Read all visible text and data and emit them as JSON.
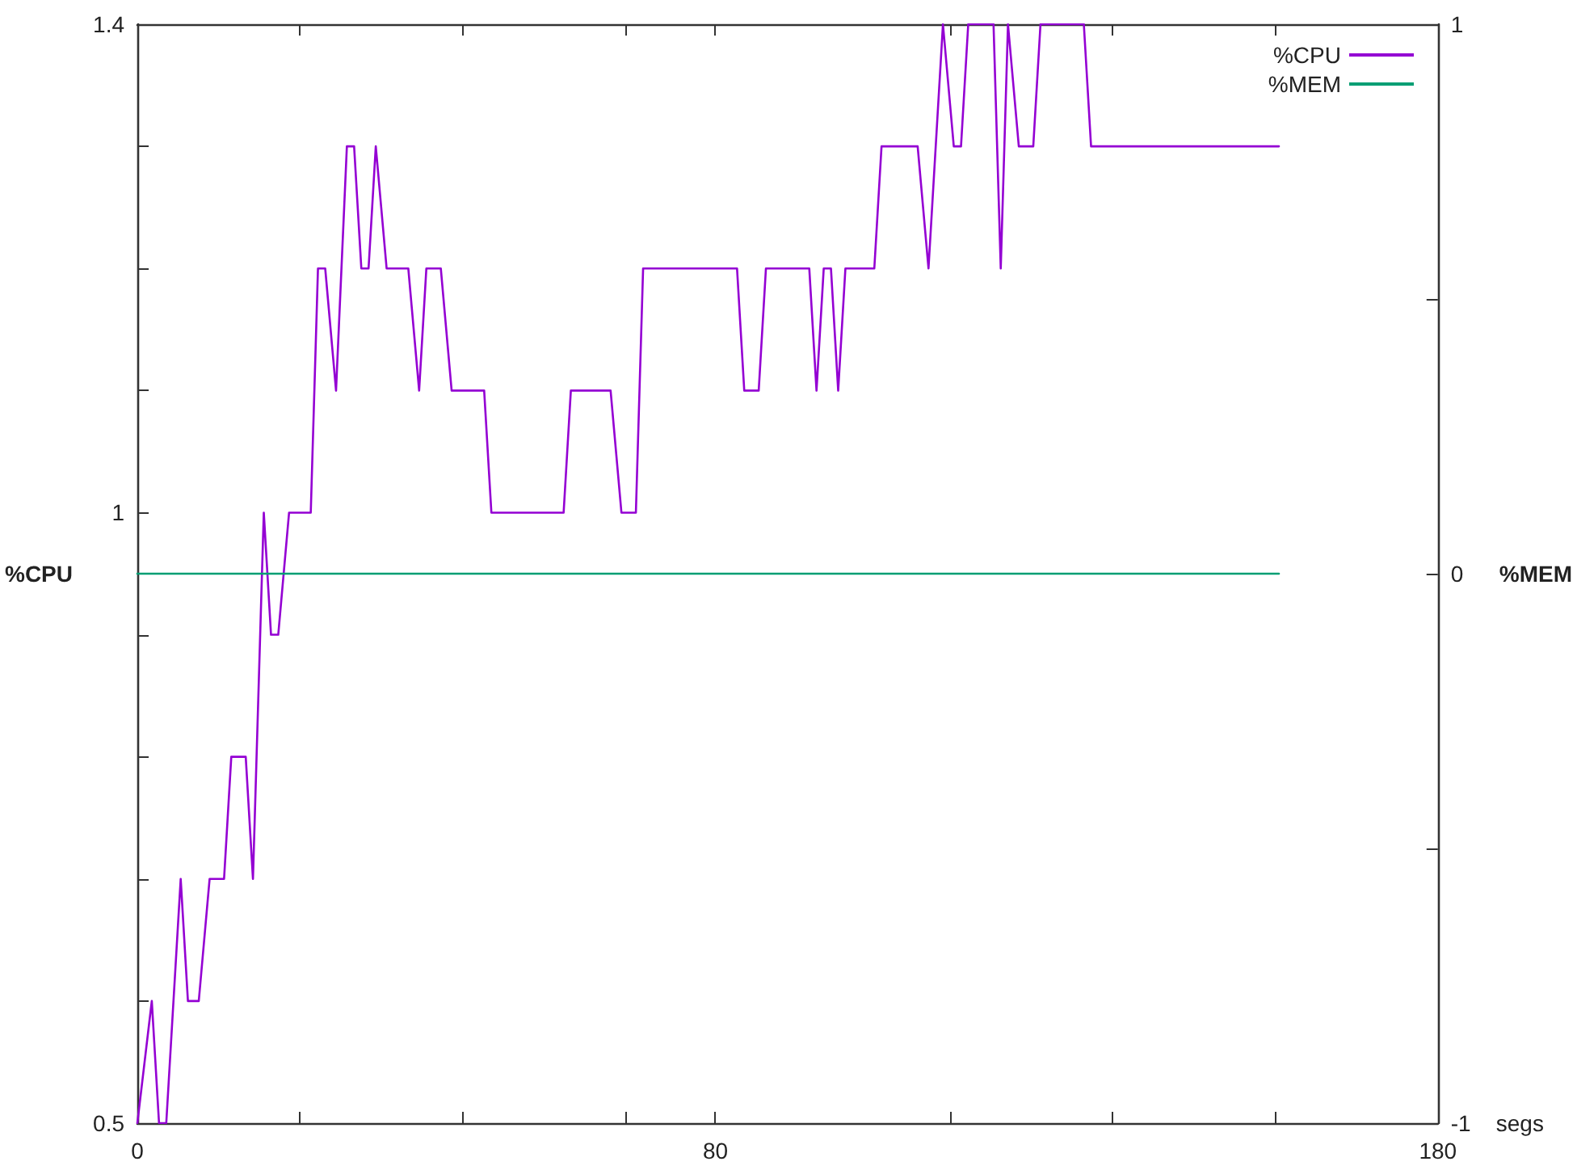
{
  "chart_data": {
    "type": "line",
    "xlabel": "segs",
    "ylabel": "%CPU",
    "y2label": "%MEM",
    "xlim": [
      0,
      180
    ],
    "xticks": [
      {
        "value": 0,
        "label": "0"
      },
      {
        "value": 22.5,
        "label": null
      },
      {
        "value": 45,
        "label": null
      },
      {
        "value": 67.5,
        "label": null
      },
      {
        "value": 80,
        "label": "80"
      },
      {
        "value": 112.5,
        "label": null
      },
      {
        "value": 135,
        "label": null
      },
      {
        "value": 157.5,
        "label": null
      },
      {
        "value": 180,
        "label": "180"
      }
    ],
    "ylim": [
      0.5,
      1.4
    ],
    "yticks": [
      {
        "value": 0.5,
        "label": "0.5"
      },
      {
        "value": 0.6,
        "label": null
      },
      {
        "value": 0.7,
        "label": null
      },
      {
        "value": 0.8,
        "label": null
      },
      {
        "value": 0.9,
        "label": null
      },
      {
        "value": 1,
        "label": "1"
      },
      {
        "value": 1.1,
        "label": null
      },
      {
        "value": 1.2,
        "label": null
      },
      {
        "value": 1.3,
        "label": null
      },
      {
        "value": 1.4,
        "label": "1.4"
      }
    ],
    "y2lim": [
      -1,
      1
    ],
    "y2ticks": [
      -1,
      {
        "value": -0.5,
        "label": null
      },
      0,
      {
        "value": 0.5,
        "label": null
      },
      1
    ],
    "grid": false,
    "legend": "top right",
    "marker": "none",
    "line_style": "solid",
    "series": [
      {
        "name": "%CPU",
        "color": "#9400d3",
        "x": [
          0,
          2,
          3,
          4,
          6,
          7,
          8.5,
          10,
          12,
          13,
          15,
          16,
          17.5,
          18.5,
          19.5,
          21,
          24,
          25,
          26,
          27.5,
          29,
          30,
          31,
          32,
          33,
          34.5,
          37.5,
          39,
          40,
          42,
          43.5,
          48,
          49,
          59,
          60,
          65.5,
          67,
          69,
          70,
          83,
          84,
          86,
          87,
          93,
          94,
          95,
          96,
          97,
          98,
          102,
          103,
          108,
          109.5,
          111.5,
          113,
          114,
          115,
          118.5,
          119.5,
          120.5,
          122,
          124,
          125,
          131,
          132,
          158
        ],
        "values": [
          0.5,
          0.6,
          0.5,
          0.5,
          0.7,
          0.6,
          0.6,
          0.7,
          0.7,
          0.8,
          0.8,
          0.7,
          1.0,
          0.9,
          0.9,
          1.0,
          1.0,
          1.2,
          1.2,
          1.1,
          1.3,
          1.3,
          1.2,
          1.2,
          1.3,
          1.2,
          1.2,
          1.1,
          1.2,
          1.2,
          1.1,
          1.1,
          1.0,
          1.0,
          1.1,
          1.1,
          1.0,
          1.0,
          1.2,
          1.2,
          1.1,
          1.1,
          1.2,
          1.2,
          1.1,
          1.2,
          1.2,
          1.1,
          1.2,
          1.2,
          1.3,
          1.3,
          1.2,
          1.4,
          1.3,
          1.3,
          1.4,
          1.4,
          1.2,
          1.4,
          1.3,
          1.3,
          1.4,
          1.4,
          1.3,
          1.3
        ]
      },
      {
        "name": "%MEM",
        "color": "#009e73",
        "axis": "y2",
        "x": [
          0,
          158
        ],
        "values": [
          0,
          0
        ]
      }
    ]
  }
}
